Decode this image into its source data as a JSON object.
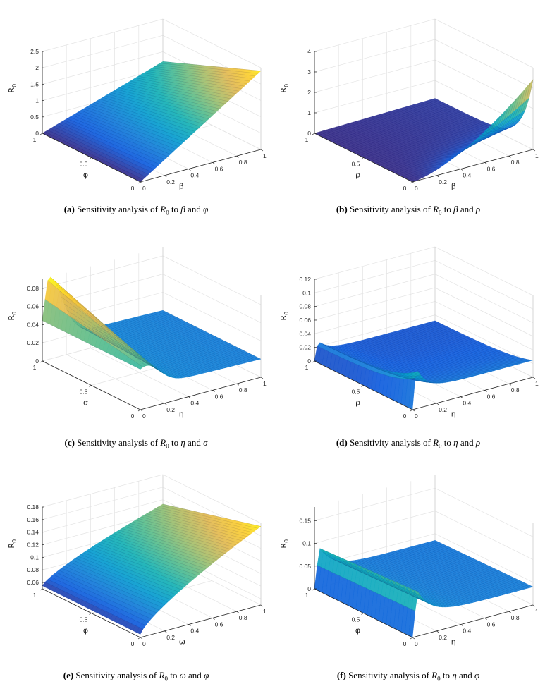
{
  "chart_data": [
    {
      "type": "surface3d",
      "caption": {
        "label": "(a)",
        "text": "Sensitivity analysis of ",
        "var": "R",
        "sub": "0",
        "mid": " to ",
        "s1": "β",
        "and": " and ",
        "s2": "φ"
      },
      "xlabel": "β",
      "ylabel": "φ",
      "zlabel": "R",
      "zlabel_sub": "0",
      "x_ticks": [
        "0",
        "0.2",
        "0.4",
        "0.6",
        "0.8",
        "1"
      ],
      "y_ticks": [
        "0",
        "0.5",
        "1"
      ],
      "z_ticks": [
        "0",
        "0.5",
        "1",
        "1.5",
        "2",
        "2.5"
      ],
      "zlim": [
        0,
        2.5
      ],
      "mesh_x": 40,
      "mesh_y": 40,
      "surface": "linear in β, largest at φ=0: R0≈2.4β(1-0.5φ), 0 at β=0"
    },
    {
      "type": "surface3d",
      "caption": {
        "label": "(b)",
        "text": "Sensitivity analysis of ",
        "var": "R",
        "sub": "0",
        "mid": " to ",
        "s1": "β",
        "and": " and ",
        "s2": "ρ"
      },
      "xlabel": "β",
      "ylabel": "ρ",
      "zlabel": "R",
      "zlabel_sub": "0",
      "x_ticks": [
        "0",
        "0.2",
        "0.4",
        "0.6",
        "0.8",
        "1"
      ],
      "y_ticks": [
        "0",
        "0.5",
        "1"
      ],
      "z_ticks": [
        "0",
        "1",
        "2",
        "3",
        "4"
      ],
      "zlim": [
        0,
        4
      ],
      "mesh_x": 10,
      "mesh_y": 40,
      "surface": "near zero except small ρ; peak ≈3.3 at β=1, ρ=0"
    },
    {
      "type": "surface3d",
      "caption": {
        "label": "(c)",
        "text": "Sensitivity analysis of ",
        "var": "R",
        "sub": "0",
        "mid": " to ",
        "s1": "η",
        "and": " and ",
        "s2": "σ"
      },
      "xlabel": "η",
      "ylabel": "σ",
      "zlabel": "R",
      "zlabel_sub": "0",
      "x_ticks": [
        "0",
        "0.2",
        "0.4",
        "0.6",
        "0.8",
        "1"
      ],
      "y_ticks": [
        "0",
        "0.5",
        "1"
      ],
      "z_ticks": [
        "0",
        "0.02",
        "0.04",
        "0.06",
        "0.08"
      ],
      "zlim": [
        0,
        0.09
      ],
      "mesh_x": 40,
      "mesh_y": 40,
      "surface": "decays with η; max ≈0.088 near η≈0.05, σ=1; ≈0.02 at η=1"
    },
    {
      "type": "surface3d",
      "caption": {
        "label": "(d)",
        "text": "Sensitivity analysis of ",
        "var": "R",
        "sub": "0",
        "mid": " to ",
        "s1": "η",
        "and": " and ",
        "s2": "ρ"
      },
      "xlabel": "η",
      "ylabel": "ρ",
      "zlabel": "R",
      "zlabel_sub": "0",
      "x_ticks": [
        "0",
        "0.2",
        "0.4",
        "0.6",
        "0.8",
        "1"
      ],
      "y_ticks": [
        "0",
        "0.5",
        "1"
      ],
      "z_ticks": [
        "0",
        "0.02",
        "0.04",
        "0.06",
        "0.08",
        "0.1",
        "0.12"
      ],
      "zlim": [
        0,
        0.12
      ],
      "mesh_x": 40,
      "mesh_y": 40,
      "surface": "zero at η=0; peaks ≈0.06 near η≈0.05 for small ρ; ≈0.025 at η=1"
    },
    {
      "type": "surface3d",
      "caption": {
        "label": "(e)",
        "text": "Sensitivity analysis of ",
        "var": "R",
        "sub": "0",
        "mid": " to ",
        "s1": "ω",
        "and": " and ",
        "s2": "φ"
      },
      "xlabel": "ω",
      "ylabel": "φ",
      "zlabel": "R",
      "zlabel_sub": "0",
      "x_ticks": [
        "0",
        "0.2",
        "0.4",
        "0.6",
        "0.8",
        "1"
      ],
      "y_ticks": [
        "0",
        "0.5",
        "1"
      ],
      "z_ticks": [
        "0.06",
        "0.08",
        "0.1",
        "0.12",
        "0.14",
        "0.16",
        "0.18"
      ],
      "zlim": [
        0.05,
        0.18
      ],
      "mesh_x": 40,
      "mesh_y": 40,
      "surface": "increases with ω; ≈0.175 at ω=1, φ=0; ≈0.055 at ω=0, φ=1"
    },
    {
      "type": "surface3d",
      "caption": {
        "label": "(f)",
        "text": "Sensitivity analysis of ",
        "var": "R",
        "sub": "0",
        "mid": " to ",
        "s1": "η",
        "and": " and ",
        "s2": "φ"
      },
      "xlabel": "η",
      "ylabel": "φ",
      "zlabel": "R",
      "zlabel_sub": "0",
      "x_ticks": [
        "0",
        "0.2",
        "0.4",
        "0.6",
        "0.8",
        "1"
      ],
      "y_ticks": [
        "0",
        "0.5",
        "1"
      ],
      "z_ticks": [
        "0",
        "0.05",
        "0.1",
        "0.15"
      ],
      "zlim": [
        0,
        0.18
      ],
      "mesh_x": 40,
      "mesh_y": 40,
      "surface": "zero at η=0; peak ≈0.1 near η≈0.05; ≈0.04 at η=1"
    }
  ]
}
